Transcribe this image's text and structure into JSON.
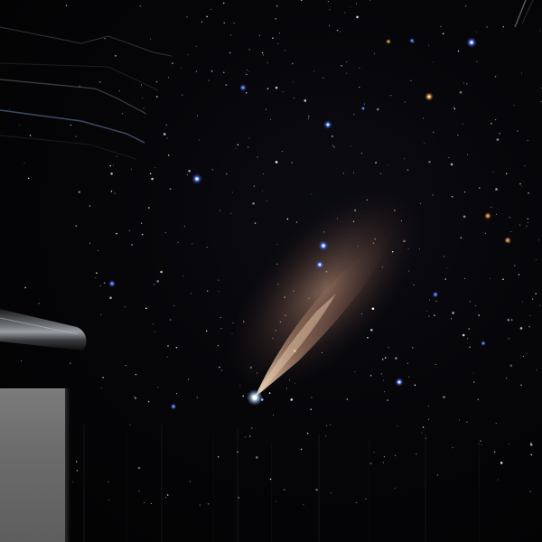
{
  "scene": {
    "subject": "comet",
    "sky_color": "#040406",
    "star_colors": {
      "blue": "#5f8dff",
      "orange": "#f0a24a",
      "white": "#ffffff"
    },
    "comet_tail_color": "#c49477",
    "comet_coma_color": "#e8f4ff",
    "foreground_color": "#6e6e6e"
  }
}
